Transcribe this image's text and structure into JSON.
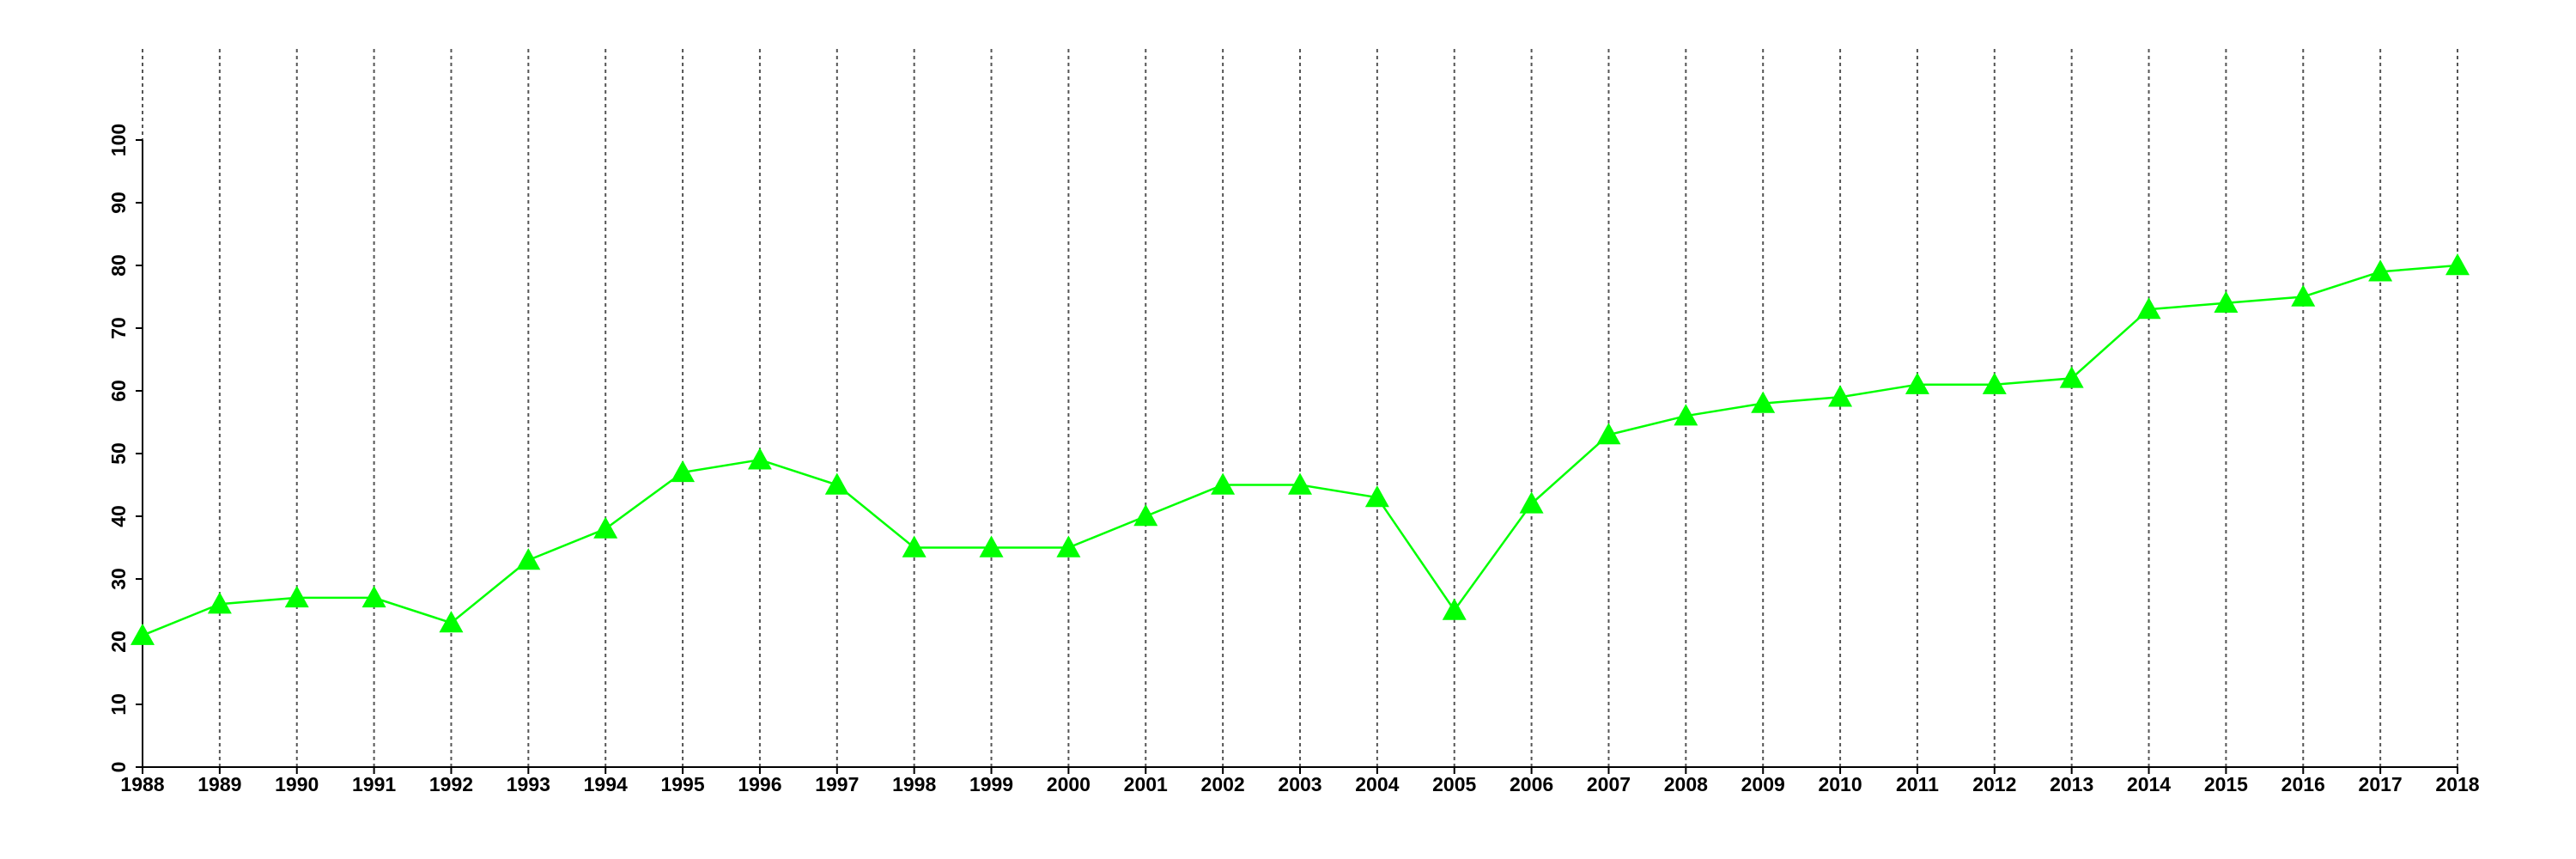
{
  "chart_data": {
    "type": "line",
    "x": [
      1988,
      1989,
      1990,
      1991,
      1992,
      1993,
      1994,
      1995,
      1996,
      1997,
      1998,
      1999,
      2000,
      2001,
      2002,
      2003,
      2004,
      2005,
      2006,
      2007,
      2008,
      2009,
      2010,
      2011,
      2012,
      2013,
      2014,
      2015,
      2016,
      2017,
      2018
    ],
    "series": [
      {
        "color": "#00ff00",
        "marker": "triangle",
        "values": [
          21,
          26,
          27,
          27,
          23,
          33,
          38,
          47,
          49,
          45,
          35,
          35,
          35,
          40,
          45,
          45,
          43,
          25,
          42,
          53,
          56,
          58,
          59,
          61,
          61,
          62,
          73,
          74,
          75,
          79,
          80
        ]
      }
    ],
    "xlim": [
      1988,
      2018
    ],
    "xticks": [
      1988,
      1989,
      1990,
      1991,
      1992,
      1993,
      1994,
      1995,
      1996,
      1997,
      1998,
      1999,
      2000,
      2001,
      2002,
      2003,
      2004,
      2005,
      2006,
      2007,
      2008,
      2009,
      2010,
      2011,
      2012,
      2013,
      2014,
      2015,
      2016,
      2017,
      2018
    ],
    "ylim": [
      0,
      100
    ],
    "yticks": [
      0,
      10,
      20,
      30,
      40,
      50,
      60,
      70,
      80,
      90,
      100
    ],
    "grid": "x"
  }
}
